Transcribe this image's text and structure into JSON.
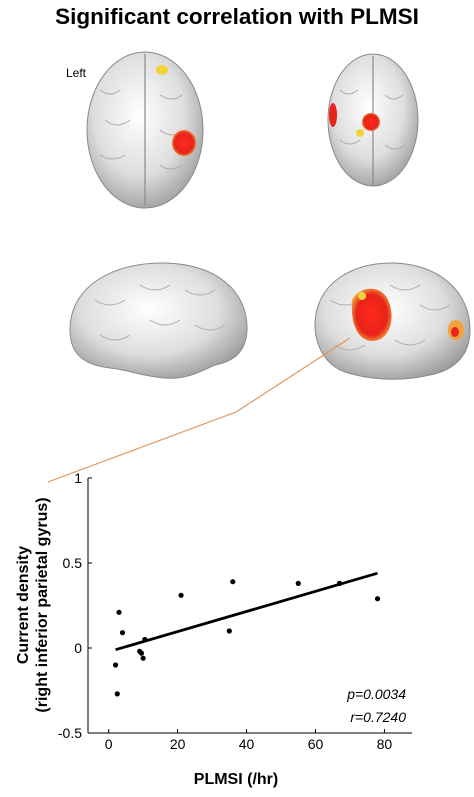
{
  "figure": {
    "title": "Significant correlation with PLMSI",
    "view_label": "Left"
  },
  "stats": {
    "p": "p=0.0034",
    "r": "r=0.7240"
  },
  "colors": {
    "activation_red": "#e8231a",
    "activation_yellow": "#f2d33a",
    "connector": "#e0965a",
    "brain": "#d9d9d9"
  },
  "chart_data": {
    "type": "scatter",
    "xlabel": "PLMSI (/hr)",
    "ylabel": "Current density\n(right inferior  parietal gyrus)",
    "xlim": [
      -6,
      88
    ],
    "ylim": [
      -0.5,
      1
    ],
    "xticks": [
      0,
      20,
      40,
      60,
      80
    ],
    "yticks": [
      -0.5,
      0,
      0.5,
      1
    ],
    "xtick_labels": [
      "0",
      "20",
      "40",
      "60",
      "80"
    ],
    "ytick_labels": [
      "-0.5",
      "0",
      "0.5",
      "1"
    ],
    "points": [
      {
        "x": 2.0,
        "y": -0.1
      },
      {
        "x": 2.5,
        "y": -0.27
      },
      {
        "x": 3.0,
        "y": 0.21
      },
      {
        "x": 4.0,
        "y": 0.09
      },
      {
        "x": 9.0,
        "y": -0.02
      },
      {
        "x": 9.5,
        "y": -0.03
      },
      {
        "x": 10.0,
        "y": -0.06
      },
      {
        "x": 10.5,
        "y": 0.05
      },
      {
        "x": 21.0,
        "y": 0.31
      },
      {
        "x": 35.0,
        "y": 0.1
      },
      {
        "x": 36.0,
        "y": 0.39
      },
      {
        "x": 55.0,
        "y": 0.38
      },
      {
        "x": 67.0,
        "y": 0.38
      },
      {
        "x": 78.0,
        "y": 0.29
      }
    ],
    "fit_line": {
      "x": [
        2,
        78
      ],
      "y": [
        -0.01,
        0.44
      ]
    }
  }
}
